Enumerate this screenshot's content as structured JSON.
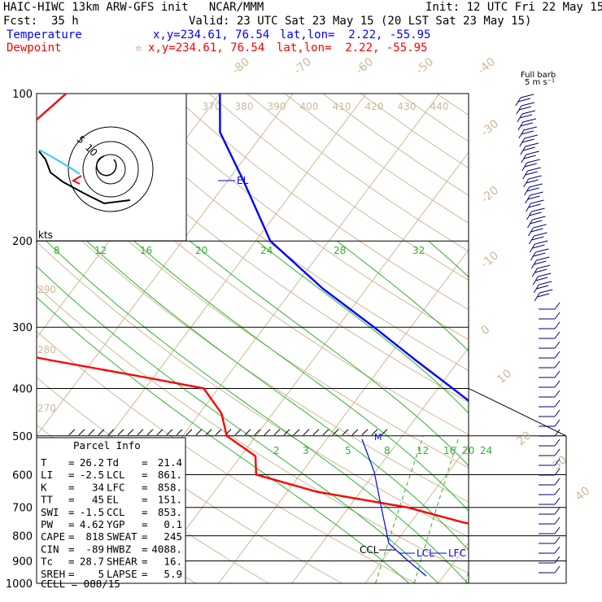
{
  "header": {
    "title": "HAIC-HIWC 13km ARW-GFS init   NCAR/MMM",
    "init": "Init: 12 UTC Fri 22 May 15",
    "fcst": "Fcst:  35 h",
    "valid": "Valid: 23 UTC Sat 23 May 15 (20 LST Sat 23 May 15)",
    "temp_label": "Temperature",
    "temp_xy": "x,y=234.61, 76.54",
    "temp_latlon": "lat,lon=  2.22, -55.95",
    "dew_label": "Dewpoint",
    "dew_marker": "☆",
    "dew_xy": "x,y=234.61, 76.54",
    "dew_latlon": "lat,lon=  2.22, -55.95"
  },
  "chart_data": {
    "type": "line",
    "title": "Skew-T log-P sounding",
    "pressure_levels": [
      "100",
      "200",
      "300",
      "400",
      "500",
      "600",
      "700",
      "800",
      "900",
      "1000"
    ],
    "isotherm_labels": [
      "-80",
      "-70",
      "-60",
      "-50",
      "-40",
      "-30",
      "-20",
      "-10",
      "0",
      "10",
      "20",
      "30",
      "40"
    ],
    "theta_labels": [
      "370",
      "380",
      "390",
      "400",
      "410",
      "420",
      "430",
      "440"
    ],
    "theta_side_labels": [
      "290",
      "280",
      "270"
    ],
    "mixing_ratio_top": [
      "8",
      "12",
      "16",
      "20",
      "24",
      "28",
      "32"
    ],
    "mixing_ratio_mid": [
      "2",
      "3",
      "5",
      "8",
      "12",
      "16",
      "20",
      "24"
    ],
    "level_labels": {
      "el": "EL",
      "ccl": "CCL",
      "lcl": "LCL",
      "lfc": "LFC",
      "m": "M"
    },
    "barb_title": "Full barb",
    "barb_unit": "5 m s⁻¹",
    "hodo": {
      "unit": "kts",
      "ring1": "5",
      "ring2": "10"
    },
    "series": [
      {
        "name": "Temperature",
        "color": "#0000ff",
        "p": [
          100,
          120,
          150,
          200,
          250,
          300,
          350,
          400,
          450,
          500,
          550,
          600,
          650,
          700,
          750,
          800,
          850,
          870,
          900,
          925,
          950
        ],
        "v": [
          -80,
          -76,
          -68,
          -58,
          -46,
          -35,
          -26,
          -18,
          -11,
          -6,
          -1,
          4,
          8,
          10,
          13,
          16,
          18,
          19,
          21,
          23,
          26.2
        ]
      },
      {
        "name": "Dewpoint",
        "color": "#ff0000",
        "p": [
          100,
          120,
          140,
          160,
          180,
          200,
          220,
          250,
          270,
          300,
          330,
          350,
          380,
          400,
          450,
          500,
          550,
          600,
          650,
          700,
          750,
          800,
          850,
          870,
          900,
          925,
          950
        ],
        "v": [
          -101,
          -103,
          -104,
          -113,
          -116,
          -104,
          -95,
          -92,
          -96,
          -93,
          -86,
          -76,
          -61,
          -52,
          -47,
          -44,
          -38,
          -36,
          -26,
          -12,
          -3,
          7,
          14,
          14,
          18,
          20,
          21.4
        ]
      }
    ]
  },
  "parcel": {
    "title": "Parcel Info",
    "rows": [
      {
        "a": "T",
        "b": "26.2",
        "c": "Td",
        "d": "21.4"
      },
      {
        "a": "LI",
        "b": "-2.5",
        "c": "LCL",
        "d": "861."
      },
      {
        "a": "K",
        "b": "34",
        "c": "LFC",
        "d": "858."
      },
      {
        "a": "TT",
        "b": "45",
        "c": "EL",
        "d": "151."
      },
      {
        "a": "SWI",
        "b": "-1.5",
        "c": "CCL",
        "d": "853."
      },
      {
        "a": "PW",
        "b": "4.62",
        "c": "YGP",
        "d": "0.1"
      },
      {
        "a": "CAPE",
        "b": "818",
        "c": "SWEAT",
        "d": "245"
      },
      {
        "a": "CIN",
        "b": "-89",
        "c": "HWBZ",
        "d": "4088."
      },
      {
        "a": "Tc",
        "b": "28.7",
        "c": "SHEAR",
        "d": "16."
      },
      {
        "a": "SREH",
        "b": "5",
        "c": "LAPSE",
        "d": "5.9"
      }
    ],
    "cell": "CELL = 088/15"
  }
}
